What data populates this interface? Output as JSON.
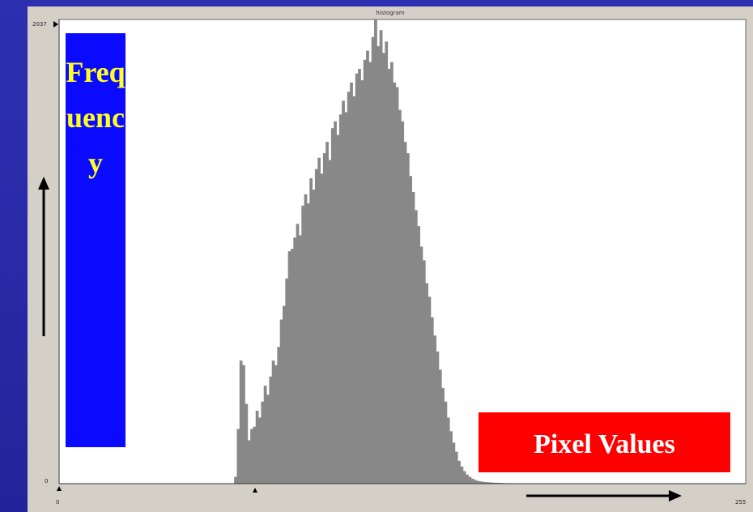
{
  "window": {
    "title": "histogram"
  },
  "labels": {
    "frequency": "Frequency",
    "pixel_values": "Pixel Values"
  },
  "colors": {
    "bar": "#888888",
    "frequency_box": "#0a0aff",
    "pixel_box": "#ff0000",
    "text_yellow": "#ffff22"
  },
  "chart_data": {
    "type": "area",
    "title": "histogram",
    "xlabel": "Pixel Values",
    "ylabel": "Frequency",
    "xlim": [
      0,
      255
    ],
    "ylim": [
      0,
      2037
    ],
    "x_tick_labels": [
      "0",
      "255"
    ],
    "y_tick_labels": [
      "0",
      "2037"
    ],
    "x": [
      65,
      66,
      67,
      68,
      69,
      70,
      71,
      72,
      73,
      74,
      75,
      76,
      77,
      78,
      79,
      80,
      81,
      82,
      83,
      84,
      85,
      86,
      87,
      88,
      89,
      90,
      91,
      92,
      93,
      94,
      95,
      96,
      97,
      98,
      99,
      100,
      101,
      102,
      103,
      104,
      105,
      106,
      107,
      108,
      109,
      110,
      111,
      112,
      113,
      114,
      115,
      116,
      117,
      118,
      119,
      120,
      121,
      122,
      123,
      124,
      125,
      126,
      127,
      128,
      129,
      130,
      131,
      132,
      133,
      134,
      135,
      136,
      137,
      138,
      139,
      140,
      141,
      142,
      143,
      144,
      145,
      146,
      147,
      148,
      149,
      150,
      151,
      152,
      153,
      154,
      155,
      156,
      157,
      158,
      159,
      160,
      161,
      162,
      163,
      164,
      165,
      166,
      167,
      168,
      169,
      170,
      171,
      172,
      173,
      174,
      175,
      176,
      177,
      178,
      179,
      180,
      181,
      182,
      183,
      184,
      185,
      186,
      187,
      188,
      189,
      190
    ],
    "values": [
      30,
      240,
      540,
      520,
      350,
      190,
      240,
      250,
      320,
      290,
      360,
      430,
      390,
      470,
      540,
      520,
      600,
      720,
      780,
      900,
      1020,
      1030,
      1080,
      1140,
      1090,
      1220,
      1270,
      1230,
      1340,
      1290,
      1380,
      1430,
      1360,
      1450,
      1500,
      1420,
      1560,
      1590,
      1530,
      1620,
      1680,
      1630,
      1720,
      1760,
      1700,
      1800,
      1820,
      1770,
      1860,
      1900,
      1850,
      1960,
      2037,
      1920,
      1990,
      1890,
      1940,
      1820,
      1850,
      1760,
      1740,
      1640,
      1590,
      1500,
      1450,
      1350,
      1280,
      1200,
      1130,
      1040,
      980,
      880,
      820,
      730,
      650,
      580,
      500,
      420,
      360,
      290,
      230,
      180,
      140,
      100,
      75,
      55,
      40,
      30,
      22,
      16,
      12,
      10,
      8,
      7,
      6,
      5,
      4,
      4,
      3,
      3,
      2,
      2,
      2,
      1,
      1,
      1,
      1,
      1,
      1,
      0,
      0,
      0,
      0,
      0,
      0,
      0,
      0,
      0,
      0,
      0,
      0,
      0,
      0,
      0,
      0,
      0
    ],
    "grid": false,
    "legend": "none"
  }
}
